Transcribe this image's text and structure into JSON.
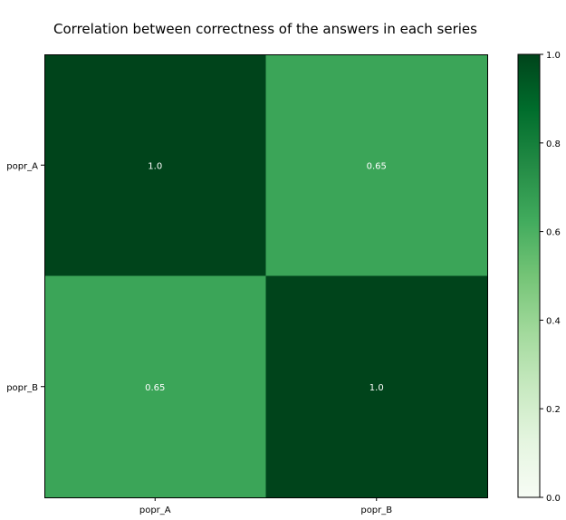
{
  "chart_data": {
    "type": "heatmap",
    "title": "Correlation between correctness of the answers in each series",
    "x_labels": [
      "popr_A",
      "popr_B"
    ],
    "y_labels": [
      "popr_A",
      "popr_B"
    ],
    "values": [
      [
        1.0,
        0.65
      ],
      [
        0.65,
        1.0
      ]
    ],
    "cell_labels": [
      [
        "1.0",
        "0.65"
      ],
      [
        "0.65",
        "1.0"
      ]
    ],
    "colormap": "Greens",
    "colormap_stops": [
      "#f7fcf5",
      "#e5f5e0",
      "#c7e9c0",
      "#a1d99b",
      "#74c476",
      "#41ab5d",
      "#238b45",
      "#006d2c",
      "#00441b"
    ],
    "cell_text_color": "#ffffff",
    "colorbar": {
      "range": [
        0.0,
        1.0
      ],
      "ticks": [
        0.0,
        0.2,
        0.4,
        0.6,
        0.8,
        1.0
      ],
      "tick_labels": [
        "0.0",
        "0.2",
        "0.4",
        "0.6",
        "0.8",
        "1.0"
      ],
      "placement": "right"
    },
    "grid": false
  }
}
